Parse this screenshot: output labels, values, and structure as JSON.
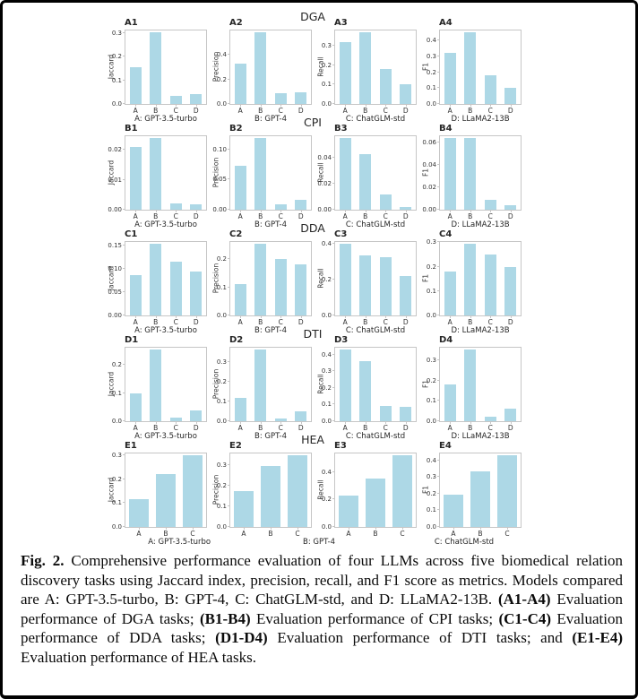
{
  "figure": {
    "bar_color": "#ADD8E6",
    "axis_color": "#c6c6c6",
    "text_color": "#262626",
    "row_titles": [
      "DGA",
      "CPI",
      "DDA",
      "DTI",
      "HEA"
    ],
    "hea_xlabels": [
      {
        "label": "A: GPT-3.5-turbo",
        "center_pct": 18.2
      },
      {
        "label": "B: GPT-4",
        "center_pct": 51.5
      },
      {
        "label": "C: ChatGLM-std",
        "center_pct": 86.1
      }
    ]
  },
  "chart_data": [
    {
      "id": "A1",
      "task": "DGA",
      "type": "bar",
      "ylabel": "Jaccard",
      "xlabel": "A: GPT-3.5-turbo",
      "categories": [
        "A",
        "B",
        "C",
        "D"
      ],
      "values": [
        0.156,
        0.304,
        0.033,
        0.041
      ],
      "yticks": [
        "0.0",
        "0.1",
        "0.2",
        "0.3"
      ],
      "ylim": [
        0,
        0.319
      ]
    },
    {
      "id": "A2",
      "task": "DGA",
      "type": "bar",
      "ylabel": "Precision",
      "xlabel": "B: GPT-4",
      "categories": [
        "A",
        "B",
        "C",
        "D"
      ],
      "values": [
        0.325,
        0.58,
        0.085,
        0.095
      ],
      "yticks": [
        "0.0",
        "0.2",
        "0.4"
      ],
      "ylim": [
        0,
        0.61
      ]
    },
    {
      "id": "A3",
      "task": "DGA",
      "type": "bar",
      "ylabel": "Recall",
      "xlabel": "C: ChatGLM-std",
      "categories": [
        "A",
        "B",
        "C",
        "D"
      ],
      "values": [
        0.32,
        0.37,
        0.18,
        0.1
      ],
      "yticks": [
        "0.0",
        "0.1",
        "0.2",
        "0.3"
      ],
      "ylim": [
        0,
        0.389
      ]
    },
    {
      "id": "A4",
      "task": "DGA",
      "type": "bar",
      "ylabel": "F1",
      "xlabel": "D: LLaMA2-13B",
      "categories": [
        "A",
        "B",
        "C",
        "D"
      ],
      "values": [
        0.32,
        0.45,
        0.18,
        0.1
      ],
      "yticks": [
        "0.0",
        "0.1",
        "0.2",
        "0.3",
        "0.4"
      ],
      "ylim": [
        0,
        0.473
      ]
    },
    {
      "id": "B1",
      "task": "CPI",
      "type": "bar",
      "ylabel": "Jaccard",
      "xlabel": "A: GPT-3.5-turbo",
      "categories": [
        "A",
        "B",
        "C",
        "D"
      ],
      "values": [
        0.021,
        0.024,
        0.002,
        0.0017
      ],
      "yticks": [
        "0.00",
        "0.01",
        "0.02"
      ],
      "ylim": [
        0,
        0.0252
      ]
    },
    {
      "id": "B2",
      "task": "CPI",
      "type": "bar",
      "ylabel": "Precision",
      "xlabel": "B: GPT-4",
      "categories": [
        "A",
        "B",
        "C",
        "D"
      ],
      "values": [
        0.073,
        0.119,
        0.009,
        0.017
      ],
      "yticks": [
        "0.00",
        "0.05",
        "0.10"
      ],
      "ylim": [
        0,
        0.125
      ]
    },
    {
      "id": "B3",
      "task": "CPI",
      "type": "bar",
      "ylabel": "Recall",
      "xlabel": "C: ChatGLM-std",
      "categories": [
        "A",
        "B",
        "C",
        "D"
      ],
      "values": [
        0.055,
        0.043,
        0.012,
        0.002
      ],
      "yticks": [
        "0.00",
        "0.02",
        "0.04"
      ],
      "ylim": [
        0,
        0.058
      ]
    },
    {
      "id": "B4",
      "task": "CPI",
      "type": "bar",
      "ylabel": "F1",
      "xlabel": "D: LLaMA2-13B",
      "categories": [
        "A",
        "B",
        "C",
        "D"
      ],
      "values": [
        0.064,
        0.064,
        0.009,
        0.004
      ],
      "yticks": [
        "0.00",
        "0.02",
        "0.04",
        "0.06"
      ],
      "ylim": [
        0,
        0.0672
      ]
    },
    {
      "id": "C1",
      "task": "DDA",
      "type": "bar",
      "ylabel": "Jaccard",
      "xlabel": "A: GPT-3.5-turbo",
      "categories": [
        "A",
        "B",
        "C",
        "D"
      ],
      "values": [
        0.086,
        0.153,
        0.116,
        0.094
      ],
      "yticks": [
        "0.00",
        "0.05",
        "0.10",
        "0.15"
      ],
      "ylim": [
        0,
        0.161
      ]
    },
    {
      "id": "C2",
      "task": "DDA",
      "type": "bar",
      "ylabel": "Precision",
      "xlabel": "B: GPT-4",
      "categories": [
        "A",
        "B",
        "C",
        "D"
      ],
      "values": [
        0.11,
        0.254,
        0.2,
        0.18
      ],
      "yticks": [
        "0.0",
        "0.1",
        "0.2"
      ],
      "ylim": [
        0,
        0.267
      ]
    },
    {
      "id": "C3",
      "task": "DDA",
      "type": "bar",
      "ylabel": "Recall",
      "xlabel": "C: ChatGLM-std",
      "categories": [
        "A",
        "B",
        "C",
        "D"
      ],
      "values": [
        0.4,
        0.337,
        0.326,
        0.22
      ],
      "yticks": [
        "0.0",
        "0.2",
        "0.4"
      ],
      "ylim": [
        0,
        0.42
      ]
    },
    {
      "id": "C4",
      "task": "DDA",
      "type": "bar",
      "ylabel": "F1",
      "xlabel": "D: LLaMA2-13B",
      "categories": [
        "A",
        "B",
        "C",
        "D"
      ],
      "values": [
        0.18,
        0.293,
        0.25,
        0.2
      ],
      "yticks": [
        "0.0",
        "0.1",
        "0.2",
        "0.3"
      ],
      "ylim": [
        0,
        0.308
      ]
    },
    {
      "id": "D1",
      "task": "DTI",
      "type": "bar",
      "ylabel": "Jaccard",
      "xlabel": "A: GPT-3.5-turbo",
      "categories": [
        "A",
        "B",
        "C",
        "D"
      ],
      "values": [
        0.098,
        0.254,
        0.012,
        0.037
      ],
      "yticks": [
        "0.0",
        "0.1",
        "0.2"
      ],
      "ylim": [
        0,
        0.267
      ]
    },
    {
      "id": "D2",
      "task": "DTI",
      "type": "bar",
      "ylabel": "Precision",
      "xlabel": "B: GPT-4",
      "categories": [
        "A",
        "B",
        "C",
        "D"
      ],
      "values": [
        0.118,
        0.363,
        0.014,
        0.049
      ],
      "yticks": [
        "0.0",
        "0.1",
        "0.2",
        "0.3"
      ],
      "ylim": [
        0,
        0.381
      ]
    },
    {
      "id": "D3",
      "task": "DTI",
      "type": "bar",
      "ylabel": "Recall",
      "xlabel": "C: ChatGLM-std",
      "categories": [
        "A",
        "B",
        "C",
        "D"
      ],
      "values": [
        0.43,
        0.36,
        0.09,
        0.085
      ],
      "yticks": [
        "0.0",
        "0.1",
        "0.2",
        "0.3",
        "0.4"
      ],
      "ylim": [
        0,
        0.452
      ]
    },
    {
      "id": "D4",
      "task": "DTI",
      "type": "bar",
      "ylabel": "F1",
      "xlabel": "D: LLaMA2-13B",
      "categories": [
        "A",
        "B",
        "C",
        "D"
      ],
      "values": [
        0.18,
        0.352,
        0.024,
        0.062
      ],
      "yticks": [
        "0.0",
        "0.1",
        "0.2",
        "0.3"
      ],
      "ylim": [
        0,
        0.37
      ]
    },
    {
      "id": "E1",
      "task": "HEA",
      "type": "bar",
      "ylabel": "Jaccard",
      "xlabel": "",
      "categories": [
        "A",
        "B",
        "C"
      ],
      "values": [
        0.118,
        0.224,
        0.3
      ],
      "yticks": [
        "0.0",
        "0.1",
        "0.2",
        "0.3"
      ],
      "ylim": [
        0,
        0.316
      ]
    },
    {
      "id": "E2",
      "task": "HEA",
      "type": "bar",
      "ylabel": "Precision",
      "xlabel": "",
      "categories": [
        "A",
        "B",
        "C"
      ],
      "values": [
        0.175,
        0.295,
        0.347
      ],
      "yticks": [
        "0.0",
        "0.1",
        "0.2",
        "0.3"
      ],
      "ylim": [
        0,
        0.364
      ]
    },
    {
      "id": "E3",
      "task": "HEA",
      "type": "bar",
      "ylabel": "Recall",
      "xlabel": "",
      "categories": [
        "A",
        "B",
        "C"
      ],
      "values": [
        0.23,
        0.35,
        0.52
      ],
      "yticks": [
        "0.0",
        "0.2",
        "0.4"
      ],
      "ylim": [
        0,
        0.546
      ]
    },
    {
      "id": "E4",
      "task": "HEA",
      "type": "bar",
      "ylabel": "F1",
      "xlabel": "",
      "categories": [
        "A",
        "B",
        "C"
      ],
      "values": [
        0.196,
        0.333,
        0.43
      ],
      "yticks": [
        "0.0",
        "0.1",
        "0.2",
        "0.3",
        "0.4"
      ],
      "ylim": [
        0,
        0.452
      ]
    }
  ],
  "caption": {
    "segments": [
      {
        "text": "Fig. 2.",
        "bold": true
      },
      {
        "text": " Comprehensive performance evaluation of four LLMs across five biomedical relation discovery tasks using Jaccard index, precision, recall, and F1 score as metrics. Models compared are A: GPT-3.5-turbo, B: GPT-4, C: ChatGLM-std, and D: LLaMA2-13B. ",
        "bold": false
      },
      {
        "text": "(A1-A4)",
        "bold": true
      },
      {
        "text": " Evaluation performance of DGA tasks; ",
        "bold": false
      },
      {
        "text": "(B1-B4)",
        "bold": true
      },
      {
        "text": " Evaluation performance of CPI tasks; ",
        "bold": false
      },
      {
        "text": "(C1-C4)",
        "bold": true
      },
      {
        "text": " Evaluation performance of DDA tasks; ",
        "bold": false
      },
      {
        "text": "(D1-D4)",
        "bold": true
      },
      {
        "text": " Evaluation performance of DTI tasks; and ",
        "bold": false
      },
      {
        "text": "(E1-E4)",
        "bold": true
      },
      {
        "text": " Evaluation performance of HEA tasks.",
        "bold": false
      }
    ]
  }
}
